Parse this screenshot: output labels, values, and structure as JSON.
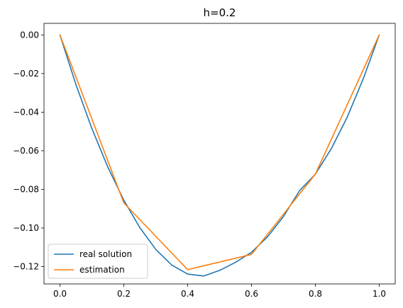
{
  "chart_data": {
    "type": "line",
    "title": "h=0.2",
    "xlabel": "",
    "ylabel": "",
    "xlim": [
      -0.05,
      1.05
    ],
    "ylim": [
      -0.129,
      0.006
    ],
    "grid": false,
    "legend_position": "lower-left",
    "x_ticks": [
      {
        "value": 0.0,
        "label": "0.0"
      },
      {
        "value": 0.2,
        "label": "0.2"
      },
      {
        "value": 0.4,
        "label": "0.4"
      },
      {
        "value": 0.6,
        "label": "0.6"
      },
      {
        "value": 0.8,
        "label": "0.8"
      },
      {
        "value": 1.0,
        "label": "1.0"
      }
    ],
    "y_ticks": [
      {
        "value": 0.0,
        "label": "0.00"
      },
      {
        "value": -0.02,
        "label": "−0.02"
      },
      {
        "value": -0.04,
        "label": "−0.04"
      },
      {
        "value": -0.06,
        "label": "−0.06"
      },
      {
        "value": -0.08,
        "label": "−0.08"
      },
      {
        "value": -0.1,
        "label": "−0.10"
      },
      {
        "value": -0.12,
        "label": "−0.12"
      }
    ],
    "series": [
      {
        "name": "real solution",
        "color": "#1f77b4",
        "x": [
          0.0,
          0.05,
          0.1,
          0.15,
          0.2,
          0.25,
          0.3,
          0.35,
          0.4,
          0.45,
          0.5,
          0.55,
          0.6,
          0.65,
          0.7,
          0.75,
          0.8,
          0.85,
          0.9,
          0.95,
          1.0
        ],
        "y": [
          0.0,
          -0.0257,
          -0.0485,
          -0.0685,
          -0.0856,
          -0.0998,
          -0.1111,
          -0.1192,
          -0.1239,
          -0.1249,
          -0.122,
          -0.1178,
          -0.1126,
          -0.1046,
          -0.0941,
          -0.0808,
          -0.0721,
          -0.0589,
          -0.0425,
          -0.0227,
          0.0
        ]
      },
      {
        "name": "estimation",
        "color": "#ff7f0e",
        "x": [
          0.0,
          0.2,
          0.4,
          0.6,
          0.8,
          1.0
        ],
        "y": [
          0.0,
          -0.087,
          -0.1216,
          -0.1137,
          -0.0721,
          0.0
        ]
      }
    ]
  }
}
